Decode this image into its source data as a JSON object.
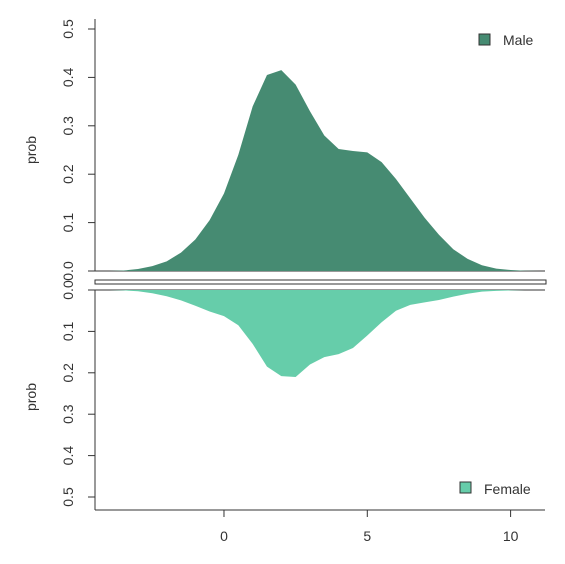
{
  "chart_data": [
    {
      "type": "area",
      "panel": "top",
      "ylabel": "prob",
      "xlim": [
        -4.5,
        11.2
      ],
      "ylim": [
        0,
        0.52
      ],
      "y_ticks": [
        "0.0",
        "0.1",
        "0.2",
        "0.3",
        "0.4",
        "0.5"
      ],
      "legend": {
        "position": "top-right"
      },
      "series": [
        {
          "name": "Male",
          "color": "#468B72",
          "x": [
            -4,
            -3.5,
            -3,
            -2.5,
            -2,
            -1.5,
            -1,
            -0.5,
            0,
            0.5,
            1,
            1.5,
            2,
            2.5,
            3,
            3.5,
            4,
            4.5,
            5,
            5.5,
            6,
            6.5,
            7,
            7.5,
            8,
            8.5,
            9,
            9.5,
            10,
            10.5,
            11
          ],
          "values": [
            0.0,
            0.001,
            0.004,
            0.01,
            0.02,
            0.038,
            0.065,
            0.105,
            0.16,
            0.24,
            0.34,
            0.405,
            0.415,
            0.385,
            0.33,
            0.28,
            0.252,
            0.248,
            0.245,
            0.225,
            0.19,
            0.15,
            0.11,
            0.075,
            0.045,
            0.025,
            0.012,
            0.005,
            0.002,
            0.0005,
            0.0
          ]
        }
      ]
    },
    {
      "type": "area",
      "panel": "bottom",
      "inverted": true,
      "ylabel": "prob",
      "xlim": [
        -4.5,
        11.2
      ],
      "ylim": [
        0,
        0.52
      ],
      "x_ticks": [
        "0",
        "5",
        "10"
      ],
      "y_ticks": [
        "0.0",
        "0.1",
        "0.2",
        "0.3",
        "0.4",
        "0.5"
      ],
      "legend": {
        "position": "bottom-right"
      },
      "series": [
        {
          "name": "Female",
          "color": "#66CDAA",
          "x": [
            -4,
            -3.5,
            -3,
            -2.5,
            -2,
            -1.5,
            -1,
            -0.5,
            0,
            0.5,
            1,
            1.5,
            2,
            2.5,
            3,
            3.5,
            4,
            4.5,
            5,
            5.5,
            6,
            6.5,
            7,
            7.5,
            8,
            8.5,
            9,
            9.5,
            10,
            10.5,
            11
          ],
          "values": [
            0.0,
            0.001,
            0.003,
            0.008,
            0.015,
            0.025,
            0.038,
            0.052,
            0.063,
            0.085,
            0.13,
            0.185,
            0.208,
            0.21,
            0.18,
            0.162,
            0.155,
            0.14,
            0.11,
            0.078,
            0.05,
            0.036,
            0.03,
            0.024,
            0.016,
            0.009,
            0.004,
            0.002,
            0.001,
            0.0,
            0.0
          ]
        }
      ]
    }
  ]
}
